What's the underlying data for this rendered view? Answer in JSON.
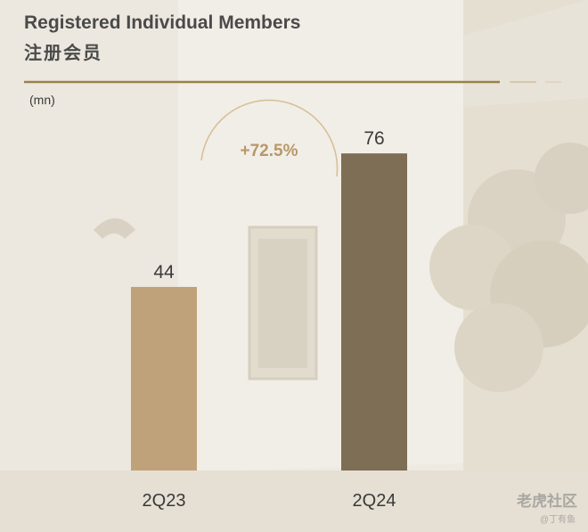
{
  "header": {
    "title": "Registered Individual Members",
    "subtitle_cn": "注册会员",
    "unit": "(mn)"
  },
  "growth_label": "+72.5%",
  "colors": {
    "bar_2q23": "#bfa27a",
    "bar_2q24": "#7e6e55",
    "title_rule": "#9a8148",
    "growth_text": "#b8976a"
  },
  "watermark": {
    "text": "老虎社区",
    "sub": "@丁有鱼"
  },
  "chart_data": {
    "type": "bar",
    "categories": [
      "2Q23",
      "2Q24"
    ],
    "values": [
      44,
      76
    ],
    "title": "Registered Individual Members",
    "ylabel": "(mn)",
    "ylim": [
      0,
      85
    ],
    "grid": false,
    "data_labels": true,
    "annotation": "+72.5%"
  }
}
